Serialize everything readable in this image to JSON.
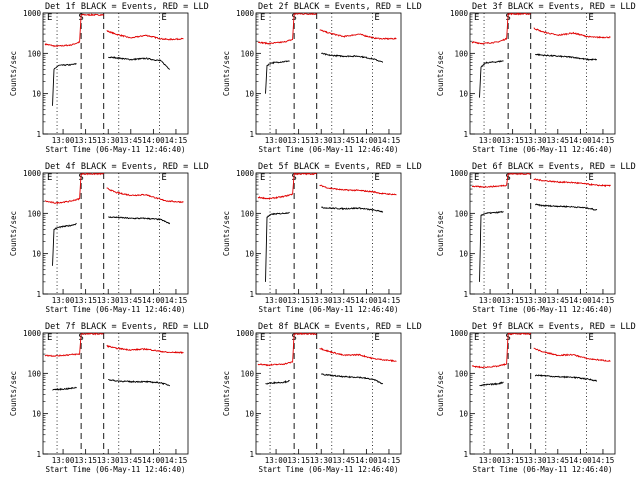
{
  "page": {
    "title_template": "Det {n}f BLACK = Events, RED = LLD",
    "xlabel": "Start Time (06-May-11 12:46:40)",
    "ylabel": "Counts/sec"
  },
  "colors": {
    "events": "#000000",
    "lld": "#e00000",
    "axes": "#000000",
    "background": "#ffffff"
  },
  "chart_data": [
    {
      "type": "line",
      "detector": "1f",
      "title": "Det 1f BLACK = Events, RED = LLD",
      "xlabel": "Start Time (06-May-11 12:46:40)",
      "ylabel": "Counts/sec",
      "y_scale": "log",
      "ylim": [
        1,
        1000
      ],
      "xlim": [
        "12:46:40",
        "14:23:00"
      ],
      "x_ticks": [
        "13:00",
        "13:15",
        "13:30",
        "13:45",
        "14:00",
        "14:15"
      ],
      "y_ticks": [
        "1",
        "10",
        "100",
        "1000"
      ],
      "markers": [
        "E",
        "S",
        "E"
      ],
      "dotted_lines": [
        "12:56",
        "13:37",
        "14:04"
      ],
      "dashed_lines": [
        "13:12",
        "13:27"
      ],
      "grid": false,
      "legend": "in title",
      "series": [
        {
          "name": "RED = LLD",
          "x": [
            "12:48",
            "12:55",
            "13:05",
            "13:11",
            "13:12",
            "13:27",
            "13:29",
            "13:35",
            "13:45",
            "13:55",
            "14:05",
            "14:10",
            "14:20"
          ],
          "y": [
            170,
            150,
            160,
            190,
            900,
            900,
            360,
            300,
            240,
            280,
            230,
            220,
            230
          ]
        },
        {
          "name": "BLACK = Events",
          "x": [
            "12:53",
            "12:54",
            "12:57",
            "13:05",
            "13:09",
            "13:30",
            "13:35",
            "13:45",
            "13:55",
            "14:05",
            "14:11"
          ],
          "y": [
            5,
            40,
            50,
            52,
            55,
            80,
            78,
            70,
            75,
            65,
            40
          ]
        }
      ]
    },
    {
      "type": "line",
      "detector": "2f",
      "title": "Det 2f BLACK = Events, RED = LLD",
      "xlabel": "Start Time (06-May-11 12:46:40)",
      "ylabel": "Counts/sec",
      "y_scale": "log",
      "ylim": [
        1,
        1000
      ],
      "xlim": [
        "12:46:40",
        "14:23:00"
      ],
      "x_ticks": [
        "13:00",
        "13:15",
        "13:30",
        "13:45",
        "14:00",
        "14:15"
      ],
      "y_ticks": [
        "1",
        "10",
        "100",
        "1000"
      ],
      "markers": [
        "E",
        "S",
        "E"
      ],
      "dotted_lines": [
        "12:56",
        "13:37",
        "14:04"
      ],
      "dashed_lines": [
        "13:12",
        "13:27"
      ],
      "grid": false,
      "legend": "in title",
      "series": [
        {
          "name": "RED = LLD",
          "x": [
            "12:48",
            "12:55",
            "13:05",
            "13:11",
            "13:12",
            "13:27",
            "13:29",
            "13:35",
            "13:45",
            "13:55",
            "14:05",
            "14:10",
            "14:20"
          ],
          "y": [
            190,
            175,
            190,
            220,
            950,
            950,
            380,
            320,
            260,
            300,
            240,
            230,
            230
          ]
        },
        {
          "name": "BLACK = Events",
          "x": [
            "12:53",
            "12:54",
            "12:57",
            "13:05",
            "13:09",
            "13:30",
            "13:35",
            "13:45",
            "13:55",
            "14:05",
            "14:11"
          ],
          "y": [
            10,
            50,
            58,
            62,
            65,
            100,
            90,
            85,
            85,
            72,
            60
          ]
        }
      ]
    },
    {
      "type": "line",
      "detector": "3f",
      "title": "Det 3f BLACK = Events, RED = LLD",
      "xlabel": "Start Time (06-May-11 12:46:40)",
      "ylabel": "Counts/sec",
      "y_scale": "log",
      "ylim": [
        1,
        1000
      ],
      "xlim": [
        "12:46:40",
        "14:23:00"
      ],
      "x_ticks": [
        "13:00",
        "13:15",
        "13:30",
        "13:45",
        "14:00",
        "14:15"
      ],
      "y_ticks": [
        "1",
        "10",
        "100",
        "1000"
      ],
      "markers": [
        "E",
        "S",
        "E"
      ],
      "dotted_lines": [
        "12:56",
        "13:37",
        "14:04"
      ],
      "dashed_lines": [
        "13:12",
        "13:27"
      ],
      "grid": false,
      "legend": "in title",
      "series": [
        {
          "name": "RED = LLD",
          "x": [
            "12:48",
            "12:55",
            "13:05",
            "13:11",
            "13:12",
            "13:27",
            "13:29",
            "13:35",
            "13:45",
            "13:55",
            "14:05",
            "14:10",
            "14:20"
          ],
          "y": [
            190,
            175,
            190,
            230,
            950,
            950,
            420,
            340,
            280,
            320,
            260,
            250,
            250
          ]
        },
        {
          "name": "BLACK = Events",
          "x": [
            "12:53",
            "12:54",
            "12:57",
            "13:05",
            "13:09",
            "13:30",
            "13:35",
            "13:45",
            "13:55",
            "14:05",
            "14:11"
          ],
          "y": [
            8,
            45,
            58,
            62,
            65,
            95,
            90,
            85,
            80,
            70,
            70
          ]
        }
      ]
    },
    {
      "type": "line",
      "detector": "4f",
      "title": "Det 4f BLACK = Events, RED = LLD",
      "xlabel": "Start Time (06-May-11 12:46:40)",
      "ylabel": "Counts/sec",
      "y_scale": "log",
      "ylim": [
        1,
        1000
      ],
      "xlim": [
        "12:46:40",
        "14:23:00"
      ],
      "x_ticks": [
        "13:00",
        "13:15",
        "13:30",
        "13:45",
        "14:00",
        "14:15"
      ],
      "y_ticks": [
        "1",
        "10",
        "100",
        "1000"
      ],
      "markers": [
        "E",
        "S",
        "E"
      ],
      "dotted_lines": [
        "12:56",
        "13:37",
        "14:04"
      ],
      "dashed_lines": [
        "13:12",
        "13:27"
      ],
      "grid": false,
      "legend": "in title",
      "series": [
        {
          "name": "RED = LLD",
          "x": [
            "12:48",
            "12:55",
            "13:05",
            "13:11",
            "13:12",
            "13:27",
            "13:29",
            "13:35",
            "13:45",
            "13:55",
            "14:05",
            "14:10",
            "14:20"
          ],
          "y": [
            200,
            180,
            200,
            230,
            950,
            950,
            420,
            330,
            280,
            290,
            220,
            200,
            190
          ]
        },
        {
          "name": "BLACK = Events",
          "x": [
            "12:53",
            "12:54",
            "12:57",
            "13:05",
            "13:09",
            "13:30",
            "13:35",
            "13:45",
            "13:55",
            "14:05",
            "14:11"
          ],
          "y": [
            5,
            40,
            45,
            50,
            55,
            80,
            80,
            75,
            75,
            70,
            55
          ]
        }
      ]
    },
    {
      "type": "line",
      "detector": "5f",
      "title": "Det 5f BLACK = Events, RED = LLD",
      "xlabel": "Start Time (06-May-11 12:46:40)",
      "ylabel": "Counts/sec",
      "y_scale": "log",
      "ylim": [
        1,
        1000
      ],
      "xlim": [
        "12:46:40",
        "14:23:00"
      ],
      "x_ticks": [
        "13:00",
        "13:15",
        "13:30",
        "13:45",
        "14:00",
        "14:15"
      ],
      "y_ticks": [
        "1",
        "10",
        "100",
        "1000"
      ],
      "markers": [
        "E",
        "S",
        "E"
      ],
      "dotted_lines": [
        "12:56",
        "13:37",
        "14:04"
      ],
      "dashed_lines": [
        "13:12",
        "13:27"
      ],
      "grid": false,
      "legend": "in title",
      "series": [
        {
          "name": "RED = LLD",
          "x": [
            "12:48",
            "12:55",
            "13:05",
            "13:11",
            "13:12",
            "13:27",
            "13:29",
            "13:35",
            "13:45",
            "13:55",
            "14:05",
            "14:10",
            "14:20"
          ],
          "y": [
            250,
            230,
            260,
            300,
            950,
            950,
            500,
            420,
            380,
            370,
            340,
            310,
            290
          ]
        },
        {
          "name": "BLACK = Events",
          "x": [
            "12:53",
            "12:54",
            "12:57",
            "13:05",
            "13:09",
            "13:30",
            "13:35",
            "13:45",
            "13:55",
            "14:05",
            "14:11"
          ],
          "y": [
            2,
            80,
            95,
            100,
            105,
            140,
            135,
            130,
            135,
            120,
            110
          ]
        }
      ]
    },
    {
      "type": "line",
      "detector": "6f",
      "title": "Det 6f BLACK = Events, RED = LLD",
      "xlabel": "Start Time (06-May-11 12:46:40)",
      "ylabel": "Counts/sec",
      "y_scale": "log",
      "ylim": [
        1,
        1000
      ],
      "xlim": [
        "12:46:40",
        "14:23:00"
      ],
      "x_ticks": [
        "13:00",
        "13:15",
        "13:30",
        "13:45",
        "14:00",
        "14:15"
      ],
      "y_ticks": [
        "1",
        "10",
        "100",
        "1000"
      ],
      "markers": [
        "E",
        "S",
        "E"
      ],
      "dotted_lines": [
        "12:56",
        "13:37",
        "14:04"
      ],
      "dashed_lines": [
        "13:12",
        "13:27"
      ],
      "grid": false,
      "legend": "in title",
      "series": [
        {
          "name": "RED = LLD",
          "x": [
            "12:48",
            "12:55",
            "13:05",
            "13:11",
            "13:12",
            "13:27",
            "13:29",
            "13:35",
            "13:45",
            "13:55",
            "14:05",
            "14:10",
            "14:20"
          ],
          "y": [
            470,
            450,
            470,
            500,
            950,
            950,
            700,
            650,
            600,
            580,
            530,
            500,
            480
          ]
        },
        {
          "name": "BLACK = Events",
          "x": [
            "12:53",
            "12:54",
            "12:57",
            "13:05",
            "13:09",
            "13:30",
            "13:35",
            "13:45",
            "13:55",
            "14:05",
            "14:11"
          ],
          "y": [
            2,
            90,
            100,
            105,
            110,
            165,
            155,
            150,
            145,
            135,
            120
          ]
        }
      ]
    },
    {
      "type": "line",
      "detector": "7f",
      "title": "Det 7f BLACK = Events, RED = LLD",
      "xlabel": "Start Time (06-May-11 12:46:40)",
      "ylabel": "Counts/sec",
      "y_scale": "log",
      "ylim": [
        1,
        1000
      ],
      "xlim": [
        "12:46:40",
        "14:23:00"
      ],
      "x_ticks": [
        "13:00",
        "13:15",
        "13:30",
        "13:45",
        "14:00",
        "14:15"
      ],
      "y_ticks": [
        "1",
        "10",
        "100",
        "1000"
      ],
      "markers": [
        "E",
        "S",
        "E"
      ],
      "dotted_lines": [
        "12:56",
        "13:37",
        "14:04"
      ],
      "dashed_lines": [
        "13:12",
        "13:27"
      ],
      "grid": false,
      "legend": "in title",
      "series": [
        {
          "name": "RED = LLD",
          "x": [
            "12:48",
            "12:55",
            "13:05",
            "13:11",
            "13:12",
            "13:27",
            "13:29",
            "13:35",
            "13:45",
            "13:55",
            "14:05",
            "14:10",
            "14:20"
          ],
          "y": [
            280,
            270,
            290,
            300,
            950,
            950,
            480,
            420,
            380,
            400,
            350,
            330,
            330
          ]
        },
        {
          "name": "BLACK = Events",
          "x": [
            "12:53",
            "12:54",
            "12:57",
            "13:05",
            "13:09",
            "13:30",
            "13:35",
            "13:45",
            "13:55",
            "14:05",
            "14:11"
          ],
          "y": [
            38,
            40,
            40,
            42,
            45,
            70,
            65,
            62,
            62,
            58,
            50
          ]
        }
      ]
    },
    {
      "type": "line",
      "detector": "8f",
      "title": "Det 8f BLACK = Events, RED = LLD",
      "xlabel": "Start Time (06-May-11 12:46:40)",
      "ylabel": "Counts/sec",
      "y_scale": "log",
      "ylim": [
        1,
        1000
      ],
      "xlim": [
        "12:46:40",
        "14:23:00"
      ],
      "x_ticks": [
        "13:00",
        "13:15",
        "13:30",
        "13:45",
        "14:00",
        "14:15"
      ],
      "y_ticks": [
        "1",
        "10",
        "100",
        "1000"
      ],
      "markers": [
        "E",
        "S",
        "E"
      ],
      "dotted_lines": [
        "12:56",
        "13:37",
        "14:04"
      ],
      "dashed_lines": [
        "13:12",
        "13:27"
      ],
      "grid": false,
      "legend": "in title",
      "series": [
        {
          "name": "RED = LLD",
          "x": [
            "12:48",
            "12:55",
            "13:05",
            "13:11",
            "13:12",
            "13:27",
            "13:29",
            "13:35",
            "13:45",
            "13:55",
            "14:05",
            "14:10",
            "14:20"
          ],
          "y": [
            170,
            160,
            170,
            190,
            950,
            950,
            420,
            350,
            280,
            290,
            230,
            220,
            200
          ]
        },
        {
          "name": "BLACK = Events",
          "x": [
            "12:53",
            "12:54",
            "12:57",
            "13:05",
            "13:09",
            "13:30",
            "13:35",
            "13:45",
            "13:55",
            "14:05",
            "14:11"
          ],
          "y": [
            55,
            55,
            58,
            60,
            65,
            95,
            90,
            82,
            80,
            70,
            55
          ]
        }
      ]
    },
    {
      "type": "line",
      "detector": "9f",
      "title": "Det 9f BLACK = Events, RED = LLD",
      "xlabel": "Start Time (06-May-11 12:46:40)",
      "ylabel": "Counts/sec",
      "y_scale": "log",
      "ylim": [
        1,
        1000
      ],
      "xlim": [
        "12:46:40",
        "14:23:00"
      ],
      "x_ticks": [
        "13:00",
        "13:15",
        "13:30",
        "13:45",
        "14:00",
        "14:15"
      ],
      "y_ticks": [
        "1",
        "10",
        "100",
        "1000"
      ],
      "markers": [
        "E",
        "S",
        "E"
      ],
      "dotted_lines": [
        "12:56",
        "13:37",
        "14:04"
      ],
      "dashed_lines": [
        "13:12",
        "13:27"
      ],
      "grid": false,
      "legend": "in title",
      "series": [
        {
          "name": "RED = LLD",
          "x": [
            "12:48",
            "12:55",
            "13:05",
            "13:11",
            "13:12",
            "13:27",
            "13:29",
            "13:35",
            "13:45",
            "13:55",
            "14:05",
            "14:10",
            "14:20"
          ],
          "y": [
            150,
            140,
            150,
            170,
            950,
            950,
            420,
            340,
            280,
            290,
            230,
            220,
            200
          ]
        },
        {
          "name": "BLACK = Events",
          "x": [
            "12:53",
            "12:54",
            "12:57",
            "13:05",
            "13:09",
            "13:30",
            "13:35",
            "13:45",
            "13:55",
            "14:05",
            "14:11"
          ],
          "y": [
            50,
            50,
            52,
            55,
            60,
            90,
            88,
            82,
            80,
            72,
            65
          ]
        }
      ]
    }
  ]
}
